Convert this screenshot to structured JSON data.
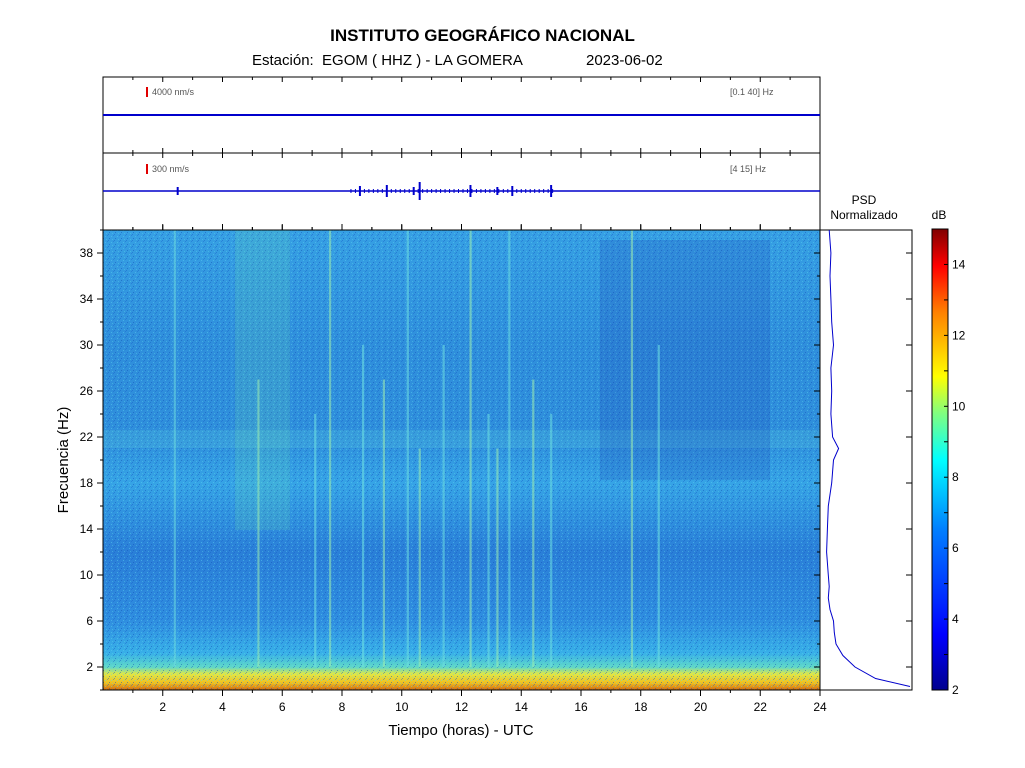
{
  "header": {
    "title": "INSTITUTO GEOGRÁFICO NACIONAL",
    "station_label": "Estación:",
    "station_value": "EGOM ( HHZ ) - LA GOMERA",
    "date": "2023-06-02"
  },
  "trace1": {
    "scale": "4000 nm/s",
    "band": "[0.1 40] Hz"
  },
  "trace2": {
    "scale": "300 nm/s",
    "band": "[4 15] Hz"
  },
  "psd": {
    "title_line1": "PSD",
    "title_line2": "Normalizado"
  },
  "colorbar": {
    "unit": "dB",
    "ticks": [
      "2",
      "4",
      "6",
      "8",
      "10",
      "12",
      "14"
    ],
    "range": [
      2,
      15
    ],
    "colors": [
      "#00008f",
      "#0000ff",
      "#0080ff",
      "#00ffff",
      "#80ff80",
      "#ffff00",
      "#ff8000",
      "#ff0000",
      "#800000"
    ]
  },
  "chart_data": {
    "type": "heatmap",
    "xlabel": "Tiempo (horas) - UTC",
    "ylabel": "Frecuencia  (Hz)",
    "xlim": [
      0,
      24
    ],
    "ylim": [
      0,
      40
    ],
    "x_ticks": [
      "2",
      "4",
      "6",
      "8",
      "10",
      "12",
      "14",
      "16",
      "18",
      "20",
      "22",
      "24"
    ],
    "y_ticks": [
      "2",
      "6",
      "10",
      "14",
      "18",
      "22",
      "26",
      "30",
      "34",
      "38"
    ],
    "vertical_events_hours": [
      2.4,
      5.2,
      7.1,
      7.6,
      8.7,
      9.4,
      10.2,
      10.6,
      11.4,
      12.3,
      12.9,
      13.2,
      13.6,
      14.4,
      15.0,
      17.7,
      18.6
    ],
    "trace2_event_hours": [
      2.5,
      8.6,
      9.5,
      10.4,
      10.6,
      12.3,
      13.2,
      13.7,
      15.0
    ],
    "psd_profile": {
      "freq_hz": [
        0.3,
        1,
        2,
        3,
        4,
        5,
        6,
        7,
        8,
        9,
        10,
        12,
        14,
        16,
        18,
        20,
        21,
        22,
        24,
        26,
        28,
        30,
        32,
        34,
        36,
        38,
        40
      ],
      "normalized": [
        1.0,
        0.6,
        0.36,
        0.22,
        0.14,
        0.12,
        0.11,
        0.07,
        0.05,
        0.06,
        0.05,
        0.03,
        0.04,
        0.05,
        0.09,
        0.11,
        0.17,
        0.1,
        0.08,
        0.09,
        0.08,
        0.11,
        0.09,
        0.08,
        0.07,
        0.08,
        0.06
      ]
    }
  }
}
